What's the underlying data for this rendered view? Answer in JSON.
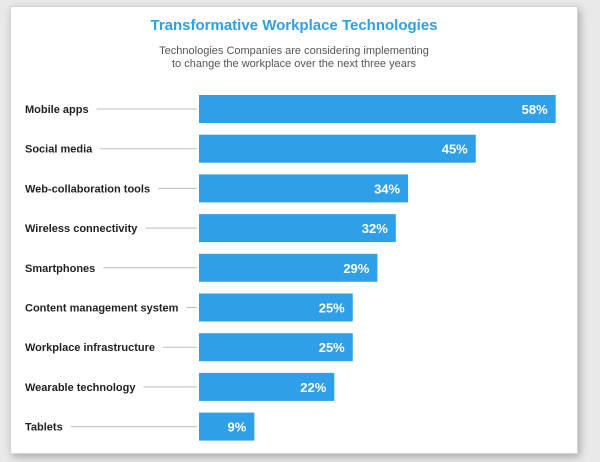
{
  "chart_data": {
    "type": "bar",
    "orientation": "horizontal",
    "title": "Transformative Workplace Technologies",
    "subtitle_lines": [
      "Technologies Companies are considering implementing",
      "to change the workplace over the next three years"
    ],
    "categories": [
      "Mobile apps",
      "Social media",
      "Web-collaboration tools",
      "Wireless connectivity",
      "Smartphones",
      "Content management system",
      "Workplace infrastructure",
      "Wearable technology",
      "Tablets"
    ],
    "values": [
      58,
      45,
      34,
      32,
      29,
      25,
      25,
      22,
      9
    ],
    "value_labels": [
      "58%",
      "45%",
      "34%",
      "32%",
      "29%",
      "25%",
      "25%",
      "22%",
      "9%"
    ],
    "bar_color": "#2f9fe8",
    "xlabel": "",
    "ylabel": "",
    "grid": false
  },
  "colors": {
    "accent": "#2f9fe8",
    "connector": "#bdbdbd"
  }
}
